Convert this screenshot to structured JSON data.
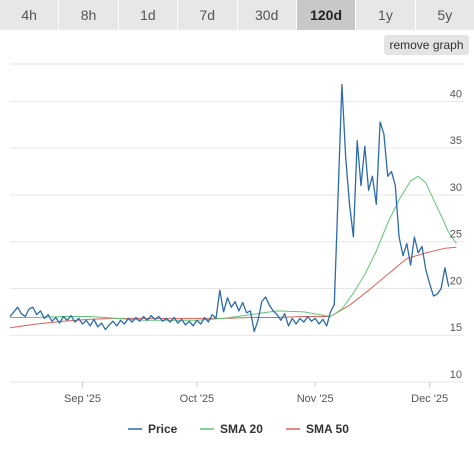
{
  "tabs": [
    {
      "label": "4h",
      "active": false
    },
    {
      "label": "8h",
      "active": false
    },
    {
      "label": "1d",
      "active": false
    },
    {
      "label": "7d",
      "active": false
    },
    {
      "label": "30d",
      "active": false
    },
    {
      "label": "120d",
      "active": true
    },
    {
      "label": "1y",
      "active": false
    },
    {
      "label": "5y",
      "active": false
    }
  ],
  "remove_graph_label": "remove graph",
  "chart_data": {
    "type": "line",
    "x_range": [
      "2025-08-13",
      "2025-12-10"
    ],
    "ylim": [
      10,
      44
    ],
    "y_ticks": [
      10,
      15,
      20,
      25,
      30,
      35,
      40
    ],
    "x_ticks": [
      {
        "date": "2025-09-01",
        "label": "Sep '25"
      },
      {
        "date": "2025-10-01",
        "label": "Oct '25"
      },
      {
        "date": "2025-11-01",
        "label": "Nov '25"
      },
      {
        "date": "2025-12-01",
        "label": "Dec '25"
      }
    ],
    "grid": true,
    "legend_position": "bottom",
    "series": [
      {
        "name": "Price",
        "color": "#2b6ca8",
        "points": [
          [
            "2025-08-13",
            17.0
          ],
          [
            "2025-08-14",
            17.5
          ],
          [
            "2025-08-15",
            18.0
          ],
          [
            "2025-08-16",
            17.3
          ],
          [
            "2025-08-17",
            17.0
          ],
          [
            "2025-08-18",
            17.8
          ],
          [
            "2025-08-19",
            18.0
          ],
          [
            "2025-08-20",
            17.2
          ],
          [
            "2025-08-21",
            17.6
          ],
          [
            "2025-08-22",
            16.8
          ],
          [
            "2025-08-23",
            17.2
          ],
          [
            "2025-08-24",
            16.5
          ],
          [
            "2025-08-25",
            16.9
          ],
          [
            "2025-08-26",
            16.3
          ],
          [
            "2025-08-27",
            17.0
          ],
          [
            "2025-08-28",
            16.6
          ],
          [
            "2025-08-29",
            17.1
          ],
          [
            "2025-08-30",
            16.4
          ],
          [
            "2025-08-31",
            16.8
          ],
          [
            "2025-09-01",
            16.2
          ],
          [
            "2025-09-02",
            16.6
          ],
          [
            "2025-09-03",
            16.0
          ],
          [
            "2025-09-04",
            16.7
          ],
          [
            "2025-09-05",
            15.9
          ],
          [
            "2025-09-06",
            16.3
          ],
          [
            "2025-09-07",
            15.6
          ],
          [
            "2025-09-08",
            16.1
          ],
          [
            "2025-09-09",
            16.5
          ],
          [
            "2025-09-10",
            16.0
          ],
          [
            "2025-09-11",
            16.6
          ],
          [
            "2025-09-12",
            16.2
          ],
          [
            "2025-09-13",
            16.8
          ],
          [
            "2025-09-14",
            16.4
          ],
          [
            "2025-09-15",
            16.9
          ],
          [
            "2025-09-16",
            16.5
          ],
          [
            "2025-09-17",
            17.0
          ],
          [
            "2025-09-18",
            16.6
          ],
          [
            "2025-09-19",
            17.1
          ],
          [
            "2025-09-20",
            16.7
          ],
          [
            "2025-09-21",
            17.0
          ],
          [
            "2025-09-22",
            16.5
          ],
          [
            "2025-09-23",
            16.8
          ],
          [
            "2025-09-24",
            16.4
          ],
          [
            "2025-09-25",
            16.9
          ],
          [
            "2025-09-26",
            16.3
          ],
          [
            "2025-09-27",
            16.7
          ],
          [
            "2025-09-28",
            16.1
          ],
          [
            "2025-09-29",
            16.5
          ],
          [
            "2025-09-30",
            16.0
          ],
          [
            "2025-10-01",
            16.6
          ],
          [
            "2025-10-02",
            16.2
          ],
          [
            "2025-10-03",
            16.9
          ],
          [
            "2025-10-04",
            16.4
          ],
          [
            "2025-10-05",
            17.2
          ],
          [
            "2025-10-06",
            16.8
          ],
          [
            "2025-10-07",
            19.8
          ],
          [
            "2025-10-08",
            17.5
          ],
          [
            "2025-10-09",
            19.0
          ],
          [
            "2025-10-10",
            18.0
          ],
          [
            "2025-10-11",
            18.6
          ],
          [
            "2025-10-12",
            17.6
          ],
          [
            "2025-10-13",
            18.5
          ],
          [
            "2025-10-14",
            17.4
          ],
          [
            "2025-10-15",
            17.6
          ],
          [
            "2025-10-16",
            15.4
          ],
          [
            "2025-10-17",
            16.6
          ],
          [
            "2025-10-18",
            18.6
          ],
          [
            "2025-10-19",
            19.1
          ],
          [
            "2025-10-20",
            18.2
          ],
          [
            "2025-10-21",
            17.6
          ],
          [
            "2025-10-22",
            17.2
          ],
          [
            "2025-10-23",
            16.6
          ],
          [
            "2025-10-24",
            17.3
          ],
          [
            "2025-10-25",
            16.0
          ],
          [
            "2025-10-26",
            16.8
          ],
          [
            "2025-10-27",
            16.2
          ],
          [
            "2025-10-28",
            16.8
          ],
          [
            "2025-10-29",
            16.4
          ],
          [
            "2025-10-30",
            17.0
          ],
          [
            "2025-10-31",
            16.5
          ],
          [
            "2025-11-01",
            16.8
          ],
          [
            "2025-11-02",
            16.2
          ],
          [
            "2025-11-03",
            16.7
          ],
          [
            "2025-11-04",
            16.0
          ],
          [
            "2025-11-05",
            17.5
          ],
          [
            "2025-11-06",
            18.3
          ],
          [
            "2025-11-07",
            30.0
          ],
          [
            "2025-11-08",
            41.8
          ],
          [
            "2025-11-09",
            34.0
          ],
          [
            "2025-11-10",
            29.0
          ],
          [
            "2025-11-11",
            25.5
          ],
          [
            "2025-11-12",
            35.8
          ],
          [
            "2025-11-13",
            31.0
          ],
          [
            "2025-11-14",
            35.2
          ],
          [
            "2025-11-15",
            30.5
          ],
          [
            "2025-11-16",
            32.0
          ],
          [
            "2025-11-17",
            29.0
          ],
          [
            "2025-11-18",
            37.8
          ],
          [
            "2025-11-19",
            36.5
          ],
          [
            "2025-11-20",
            32.0
          ],
          [
            "2025-11-21",
            32.5
          ],
          [
            "2025-11-22",
            31.0
          ],
          [
            "2025-11-23",
            25.5
          ],
          [
            "2025-11-24",
            23.5
          ],
          [
            "2025-11-25",
            24.8
          ],
          [
            "2025-11-26",
            22.5
          ],
          [
            "2025-11-27",
            25.5
          ],
          [
            "2025-11-28",
            23.8
          ],
          [
            "2025-11-29",
            24.5
          ],
          [
            "2025-11-30",
            22.0
          ],
          [
            "2025-12-01",
            20.5
          ],
          [
            "2025-12-02",
            19.2
          ],
          [
            "2025-12-03",
            19.4
          ],
          [
            "2025-12-04",
            20.0
          ],
          [
            "2025-12-05",
            22.2
          ],
          [
            "2025-12-06",
            20.2
          ]
        ]
      },
      {
        "name": "SMA 20",
        "color": "#5fc77a",
        "points": [
          [
            "2025-08-13",
            16.9
          ],
          [
            "2025-08-20",
            16.9
          ],
          [
            "2025-08-27",
            17.0
          ],
          [
            "2025-09-03",
            17.0
          ],
          [
            "2025-09-10",
            16.8
          ],
          [
            "2025-09-17",
            16.6
          ],
          [
            "2025-09-24",
            16.6
          ],
          [
            "2025-10-01",
            16.6
          ],
          [
            "2025-10-08",
            16.8
          ],
          [
            "2025-10-15",
            17.2
          ],
          [
            "2025-10-22",
            17.6
          ],
          [
            "2025-10-29",
            17.5
          ],
          [
            "2025-11-05",
            17.0
          ],
          [
            "2025-11-08",
            17.8
          ],
          [
            "2025-11-11",
            19.5
          ],
          [
            "2025-11-14",
            21.5
          ],
          [
            "2025-11-17",
            24.0
          ],
          [
            "2025-11-20",
            27.0
          ],
          [
            "2025-11-23",
            29.5
          ],
          [
            "2025-11-26",
            31.5
          ],
          [
            "2025-11-28",
            32.0
          ],
          [
            "2025-11-30",
            31.3
          ],
          [
            "2025-12-02",
            29.5
          ],
          [
            "2025-12-04",
            27.8
          ],
          [
            "2025-12-06",
            26.0
          ],
          [
            "2025-12-08",
            24.8
          ]
        ]
      },
      {
        "name": "SMA 50",
        "color": "#e0605a",
        "points": [
          [
            "2025-08-13",
            15.8
          ],
          [
            "2025-08-20",
            16.2
          ],
          [
            "2025-08-27",
            16.5
          ],
          [
            "2025-09-03",
            16.7
          ],
          [
            "2025-09-10",
            16.8
          ],
          [
            "2025-09-17",
            16.8
          ],
          [
            "2025-09-24",
            16.8
          ],
          [
            "2025-10-01",
            16.8
          ],
          [
            "2025-10-08",
            16.8
          ],
          [
            "2025-10-15",
            16.9
          ],
          [
            "2025-10-22",
            16.9
          ],
          [
            "2025-10-29",
            17.0
          ],
          [
            "2025-11-05",
            17.0
          ],
          [
            "2025-11-10",
            18.2
          ],
          [
            "2025-11-15",
            19.8
          ],
          [
            "2025-11-20",
            21.5
          ],
          [
            "2025-11-25",
            23.2
          ],
          [
            "2025-11-30",
            23.8
          ],
          [
            "2025-12-05",
            24.3
          ],
          [
            "2025-12-08",
            24.4
          ]
        ]
      }
    ]
  }
}
